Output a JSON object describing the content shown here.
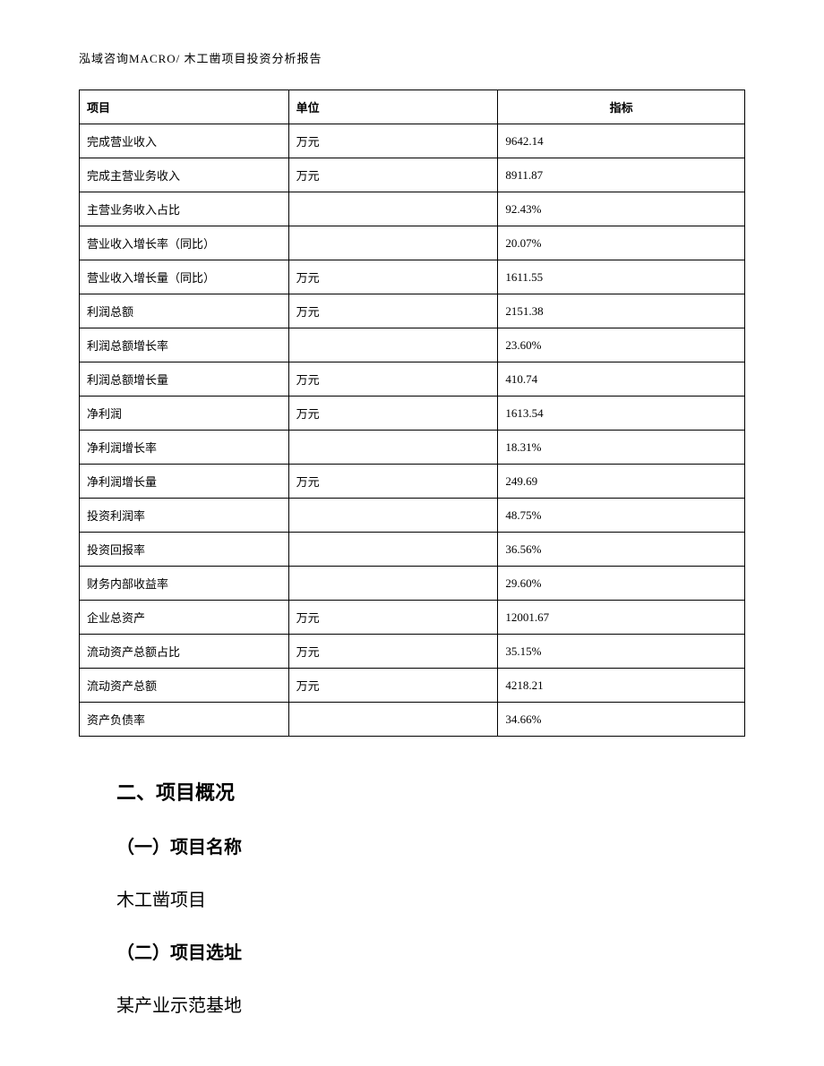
{
  "header": {
    "text": "泓域咨询MACRO/   木工凿项目投资分析报告"
  },
  "table": {
    "columns": [
      "项目",
      "单位",
      "指标"
    ],
    "rows": [
      [
        "完成营业收入",
        "万元",
        "9642.14"
      ],
      [
        "完成主营业务收入",
        "万元",
        "8911.87"
      ],
      [
        "主营业务收入占比",
        "",
        "92.43%"
      ],
      [
        "营业收入增长率（同比）",
        "",
        "20.07%"
      ],
      [
        "营业收入增长量（同比）",
        "万元",
        "1611.55"
      ],
      [
        "利润总额",
        "万元",
        "2151.38"
      ],
      [
        "利润总额增长率",
        "",
        "23.60%"
      ],
      [
        "利润总额增长量",
        "万元",
        "410.74"
      ],
      [
        "净利润",
        "万元",
        "1613.54"
      ],
      [
        "净利润增长率",
        "",
        "18.31%"
      ],
      [
        "净利润增长量",
        "万元",
        "249.69"
      ],
      [
        "投资利润率",
        "",
        "48.75%"
      ],
      [
        "投资回报率",
        "",
        "36.56%"
      ],
      [
        "财务内部收益率",
        "",
        "29.60%"
      ],
      [
        "企业总资产",
        "万元",
        "12001.67"
      ],
      [
        "流动资产总额占比",
        "万元",
        "35.15%"
      ],
      [
        "流动资产总额",
        "万元",
        "4218.21"
      ],
      [
        "资产负债率",
        "",
        "34.66%"
      ]
    ]
  },
  "sections": {
    "heading2": "二、项目概况",
    "sub1_title": "（一）项目名称",
    "sub1_text": "木工凿项目",
    "sub2_title": "（二）项目选址",
    "sub2_text": "某产业示范基地"
  }
}
